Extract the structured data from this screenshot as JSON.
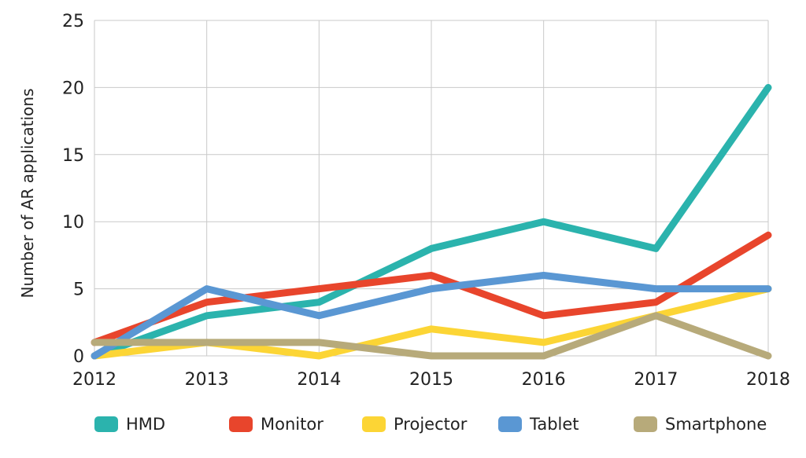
{
  "chart_data": {
    "type": "line",
    "title": "",
    "xlabel": "",
    "ylabel": "Number of AR applications",
    "x": [
      "2012",
      "2013",
      "2014",
      "2015",
      "2016",
      "2017",
      "2018"
    ],
    "ylim": [
      0,
      25
    ],
    "yticks": [
      "0",
      "5",
      "10",
      "15",
      "20",
      "25"
    ],
    "grid": true,
    "legend_position": "bottom",
    "series": [
      {
        "name": "HMD",
        "color": "#2bb3ad",
        "values": [
          0,
          3,
          4,
          8,
          10,
          8,
          20
        ]
      },
      {
        "name": "Monitor",
        "color": "#e8452c",
        "values": [
          1,
          4,
          5,
          6,
          3,
          4,
          9
        ]
      },
      {
        "name": "Projector",
        "color": "#fcd535",
        "values": [
          0,
          1,
          0,
          2,
          1,
          3,
          5
        ]
      },
      {
        "name": "Tablet",
        "color": "#5a97d3",
        "values": [
          0,
          5,
          3,
          5,
          6,
          5,
          5
        ]
      },
      {
        "name": "Smartphone",
        "color": "#b7aa7a",
        "values": [
          1,
          1,
          1,
          0,
          0,
          3,
          0
        ]
      }
    ]
  }
}
